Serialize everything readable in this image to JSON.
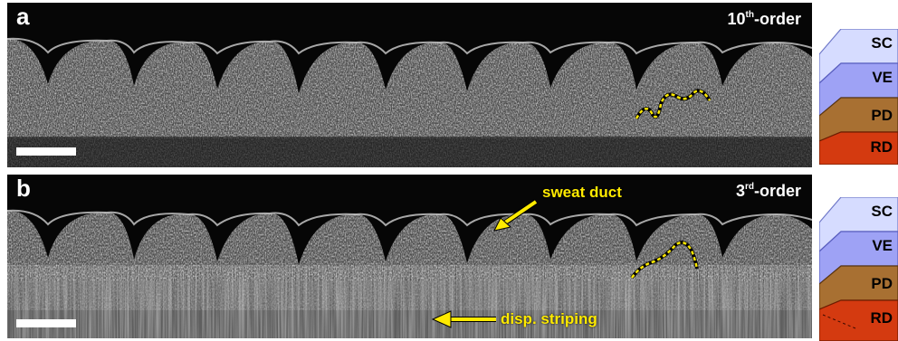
{
  "panels": [
    {
      "letter": "a",
      "order_num": "10",
      "order_sup": "th",
      "order_suffix": "-order"
    },
    {
      "letter": "b",
      "order_num": "3",
      "order_sup": "rd",
      "order_suffix": "-order"
    }
  ],
  "annotations": {
    "sweat_duct": "sweat duct",
    "striping": "disp. striping"
  },
  "layers": [
    "SC",
    "VE",
    "PD",
    "RD"
  ],
  "colors": {
    "SC": "#d6dcff",
    "VE": "#9ea2f5",
    "PD": "#a87032",
    "RD": "#d43a10",
    "annotation": "#ffea00"
  }
}
